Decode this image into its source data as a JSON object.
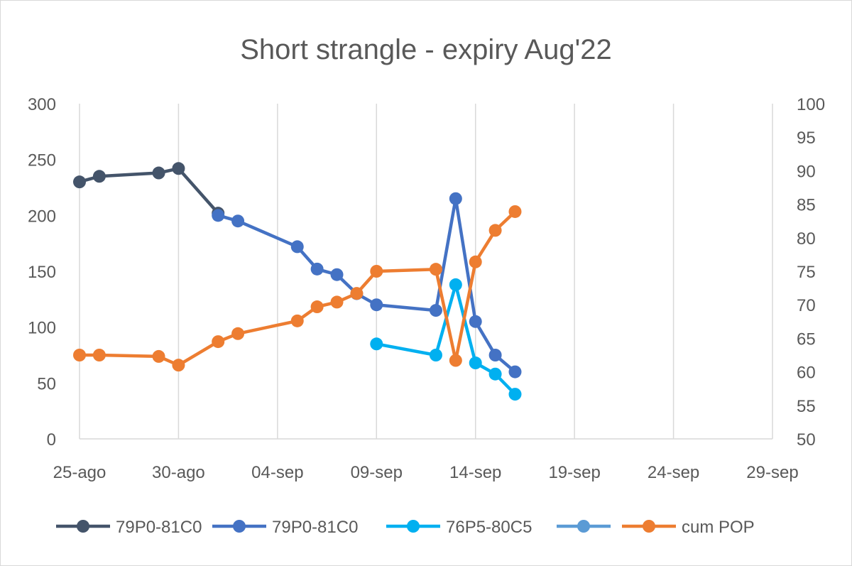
{
  "chart_data": {
    "type": "line",
    "title": "Short strangle - expiry Aug'22",
    "x_ticks": [
      "25-ago",
      "30-ago",
      "04-sep",
      "09-sep",
      "14-sep",
      "19-sep",
      "24-sep",
      "29-sep"
    ],
    "x_tick_dates": [
      "2022-08-25",
      "2022-08-30",
      "2022-09-04",
      "2022-09-09",
      "2022-09-14",
      "2022-09-19",
      "2022-09-24",
      "2022-09-29"
    ],
    "xlim": [
      "2022-08-25",
      "2022-09-29"
    ],
    "y_left": {
      "ylim": [
        0,
        300
      ],
      "ticks": [
        "300",
        "250",
        "200",
        "150",
        "100",
        "50",
        "0"
      ]
    },
    "y_right": {
      "ylim": [
        50,
        100
      ],
      "ticks": [
        "100",
        "95",
        "90",
        "85",
        "80",
        "75",
        "70",
        "65",
        "60",
        "55",
        "50"
      ]
    },
    "grid": "vertical",
    "legend_position": "bottom",
    "series": [
      {
        "name": "79P0-81C0",
        "axis": "left",
        "color": "#44546a",
        "points": [
          [
            "2022-08-25",
            230
          ],
          [
            "2022-08-26",
            235
          ],
          [
            "2022-08-29",
            238
          ],
          [
            "2022-08-30",
            242
          ],
          [
            "2022-09-01",
            202
          ]
        ]
      },
      {
        "name": "79P0-81C0",
        "axis": "left",
        "color": "#4472c4",
        "points": [
          [
            "2022-09-01",
            200
          ],
          [
            "2022-09-02",
            195
          ],
          [
            "2022-09-05",
            172
          ],
          [
            "2022-09-06",
            152
          ],
          [
            "2022-09-07",
            147
          ],
          [
            "2022-09-08",
            130
          ],
          [
            "2022-09-09",
            120
          ],
          [
            "2022-09-12",
            115
          ],
          [
            "2022-09-13",
            215
          ],
          [
            "2022-09-14",
            105
          ],
          [
            "2022-09-15",
            75
          ],
          [
            "2022-09-16",
            60
          ]
        ]
      },
      {
        "name": "76P5-80C5",
        "axis": "left",
        "color": "#00b0f0",
        "points": [
          [
            "2022-09-09",
            85
          ],
          [
            "2022-09-12",
            75
          ],
          [
            "2022-09-13",
            138
          ],
          [
            "2022-09-14",
            68
          ],
          [
            "2022-09-15",
            58
          ],
          [
            "2022-09-16",
            40
          ]
        ]
      },
      {
        "name": "",
        "axis": "left",
        "color": "#5b9bd5",
        "points": []
      },
      {
        "name": "cum POP",
        "axis": "right",
        "color": "#ed7d31",
        "points": [
          [
            "2022-08-25",
            62.5
          ],
          [
            "2022-08-26",
            62.5
          ],
          [
            "2022-08-29",
            62.3
          ],
          [
            "2022-08-30",
            61
          ],
          [
            "2022-09-01",
            64.5
          ],
          [
            "2022-09-02",
            65.7
          ],
          [
            "2022-09-05",
            67.6
          ],
          [
            "2022-09-06",
            69.7
          ],
          [
            "2022-09-07",
            70.4
          ],
          [
            "2022-09-08",
            71.7
          ],
          [
            "2022-09-09",
            75
          ],
          [
            "2022-09-12",
            75.3
          ],
          [
            "2022-09-13",
            61.7
          ],
          [
            "2022-09-14",
            76.4
          ],
          [
            "2022-09-15",
            81.1
          ],
          [
            "2022-09-16",
            83.9
          ]
        ]
      }
    ]
  }
}
